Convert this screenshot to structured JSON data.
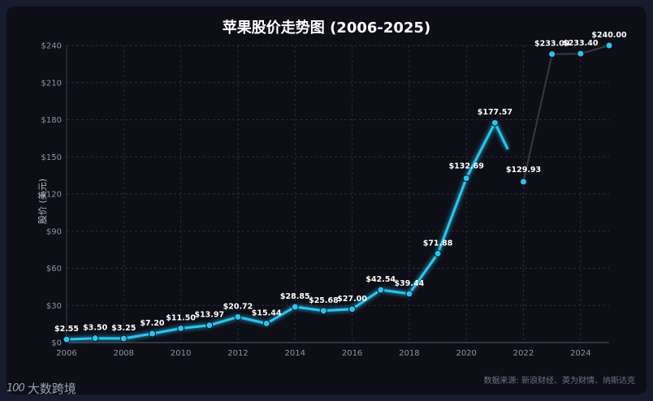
{
  "chart_data": {
    "type": "line",
    "title": "苹果股价走势图 (2006-2025)",
    "ylabel": "股价 (美元)",
    "xlabel": "",
    "x": [
      2006,
      2007,
      2008,
      2009,
      2010,
      2011,
      2012,
      2013,
      2014,
      2015,
      2016,
      2017,
      2018,
      2019,
      2020,
      2021,
      2022,
      2023,
      2024,
      2025
    ],
    "series": [
      {
        "values": [
          2.55,
          3.5,
          3.25,
          7.2,
          11.5,
          13.97,
          20.72,
          15.44,
          28.85,
          25.68,
          27.0,
          42.54,
          39.44,
          71.88,
          132.69,
          177.57,
          129.93,
          233.0,
          233.4,
          240.0
        ],
        "labels": [
          "$2.55",
          "$3.50",
          "$3.25",
          "$7.20",
          "$11.50",
          "$13.97",
          "$20.72",
          "$15.44",
          "$28.85",
          "$25.68",
          "$27.00",
          "$42.54",
          "$39.44",
          "$71.88",
          "$132.69",
          "$177.57",
          "$129.93",
          "$233.00",
          "$233.40",
          "$240.00"
        ]
      }
    ],
    "xticks": [
      "2006",
      "2008",
      "2010",
      "2012",
      "2014",
      "2016",
      "2018",
      "2020",
      "2022",
      "2024"
    ],
    "yticks": [
      "$0",
      "$30",
      "$60",
      "$90",
      "$120",
      "$150",
      "$180",
      "$210",
      "$240"
    ],
    "xlim": [
      2006,
      2025
    ],
    "ylim": [
      0,
      240
    ],
    "grid": true,
    "line_color": "#29c5f0",
    "tail_color": "#3a3a3a"
  },
  "source": "数据来源: 新浪财经、英为财情、纳斯达克",
  "watermark": {
    "logo": "100",
    "text": "大数跨境"
  }
}
